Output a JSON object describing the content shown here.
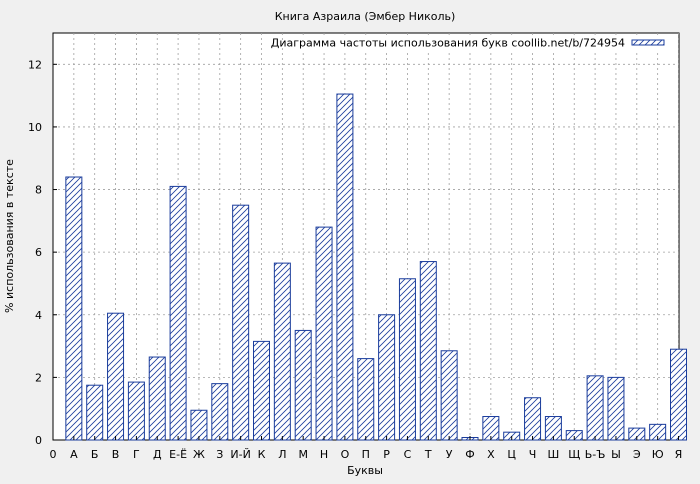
{
  "chart_data": {
    "type": "bar",
    "title": "Книга Азраила (Эмбер Николь)",
    "xlabel": "Буквы",
    "ylabel": "% использования в тексте",
    "legend": "Диаграмма частоты использования букв coollib.net/b/724954",
    "legend_position": "top-right",
    "grid": true,
    "ylim": [
      0,
      13
    ],
    "yticks": [
      0,
      2,
      4,
      6,
      8,
      10,
      12
    ],
    "x_tick_labels": [
      "0",
      "А",
      "Б",
      "В",
      "Г",
      "Д",
      "Е-Ё",
      "Ж",
      "З",
      "И-Й",
      "К",
      "Л",
      "М",
      "Н",
      "О",
      "П",
      "Р",
      "С",
      "Т",
      "У",
      "Ф",
      "Х",
      "Ц",
      "Ч",
      "Ш",
      "Щ",
      "Ь-Ъ",
      "Ы",
      "Э",
      "Ю",
      "Я"
    ],
    "categories": [
      "А",
      "Б",
      "В",
      "Г",
      "Д",
      "Е-Ё",
      "Ж",
      "З",
      "И-Й",
      "К",
      "Л",
      "М",
      "Н",
      "О",
      "П",
      "Р",
      "С",
      "Т",
      "У",
      "Ф",
      "Х",
      "Ц",
      "Ч",
      "Ш",
      "Щ",
      "Ь-Ъ",
      "Ы",
      "Э",
      "Ю",
      "Я"
    ],
    "values": [
      8.4,
      1.75,
      4.05,
      1.85,
      2.65,
      8.1,
      0.95,
      1.8,
      7.5,
      3.15,
      5.65,
      3.5,
      6.8,
      11.05,
      2.6,
      4.0,
      5.15,
      5.7,
      2.85,
      0.08,
      0.75,
      0.25,
      1.35,
      0.75,
      0.3,
      2.05,
      2.0,
      0.38,
      0.5,
      2.9
    ],
    "colors": {
      "bar": "#1a3c9c",
      "background": "#ffffff",
      "page": "#f0f0f0",
      "grid": "#a0a0a0"
    }
  }
}
